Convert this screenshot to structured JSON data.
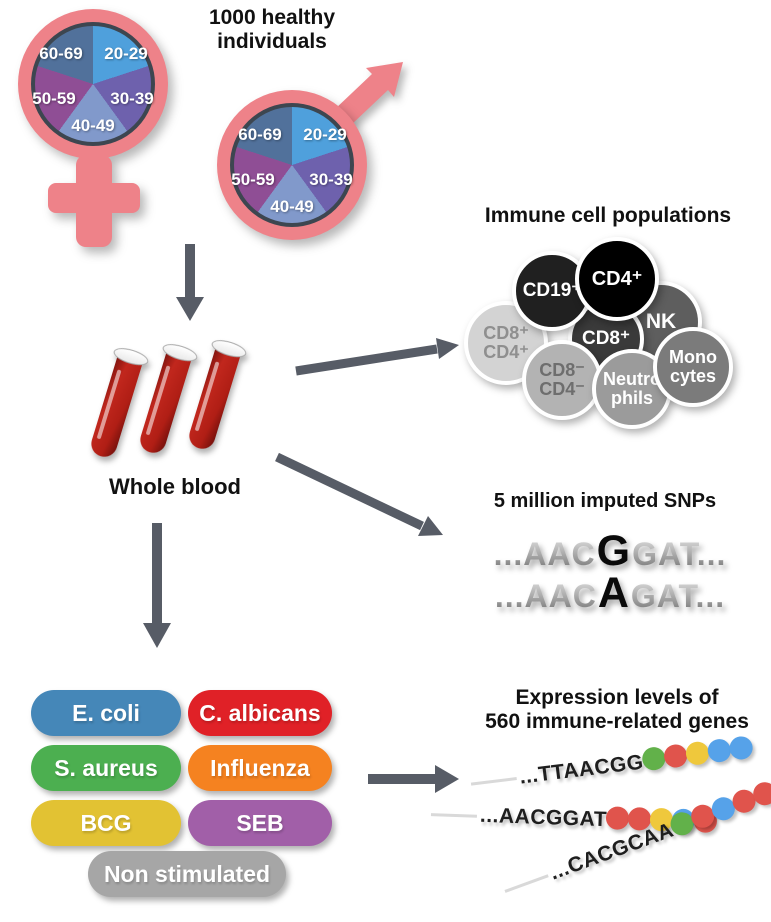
{
  "header": {
    "title_line1": "1000 healthy",
    "title_line2": "individuals"
  },
  "pies": {
    "age_groups": [
      "20-29",
      "30-39",
      "40-49",
      "50-59",
      "60-69"
    ],
    "slice_colors": [
      "#4FA0DC",
      "#6E61AD",
      "#8199CB",
      "#8F4E95",
      "#51719B"
    ],
    "symbol_color": "#EE8289",
    "pie_border_color": "#3D4650"
  },
  "whole_blood": {
    "label": "Whole blood"
  },
  "arrows": {
    "color": "#575C66"
  },
  "immune": {
    "title": "Immune cell populations",
    "cells": [
      {
        "label": "NK",
        "color": "#5E5E5E",
        "text_color": "#FFFFFF"
      },
      {
        "label": "CD8⁺",
        "color": "#3A3A3A",
        "text_color": "#FFFFFF"
      },
      {
        "label": "CD8⁺\nCD4⁺",
        "color": "#D3D3D3",
        "text_color": "#8F8F8F"
      },
      {
        "label": "CD19⁺",
        "color": "#202020",
        "text_color": "#FFFFFF"
      },
      {
        "label": "CD4⁺",
        "color": "#000000",
        "text_color": "#FFFFFF"
      },
      {
        "label": "CD8⁻\nCD4⁻",
        "color": "#B3B3B3",
        "text_color": "#6E6E6E"
      },
      {
        "label": "Neutro\nphils",
        "color": "#9B9B9B",
        "text_color": "#FFFFFF"
      },
      {
        "label": "Mono\ncytes",
        "color": "#7B7B7B",
        "text_color": "#FFFFFF"
      }
    ]
  },
  "snp": {
    "title": "5 million imputed SNPs",
    "sequences": [
      {
        "pre": "...AAC",
        "variant": "G",
        "post": "GAT..."
      },
      {
        "pre": "...AAC",
        "variant": "A",
        "post": "GAT..."
      }
    ]
  },
  "stimuli": {
    "items": [
      {
        "label": "E. coli",
        "color": "#4587B8"
      },
      {
        "label": "C. albicans",
        "color": "#E02127"
      },
      {
        "label": "S. aureus",
        "color": "#4CAF50"
      },
      {
        "label": "Influenza",
        "color": "#F58220"
      },
      {
        "label": "BCG",
        "color": "#E2C233"
      },
      {
        "label": "SEB",
        "color": "#A15FA8"
      },
      {
        "label": "Non stimulated",
        "color": "#A6A6A6"
      }
    ]
  },
  "expression": {
    "title_line1": "Expression levels of",
    "title_line2": "560 immune-related genes",
    "dot_colors": {
      "green": "#62B14A",
      "red": "#E0544C",
      "yellow": "#EFC83C",
      "blue": "#56A2E9"
    },
    "rows": [
      {
        "sequence": "...TTAACGG",
        "dots": [
          "green",
          "red",
          "yellow",
          "blue",
          "blue"
        ]
      },
      {
        "sequence": "...AACGGAT",
        "dots": [
          "red",
          "red",
          "yellow",
          "blue",
          "red"
        ]
      },
      {
        "sequence": "...CACGCAA",
        "dots": [
          "green",
          "red",
          "blue",
          "red",
          "red"
        ]
      }
    ]
  }
}
